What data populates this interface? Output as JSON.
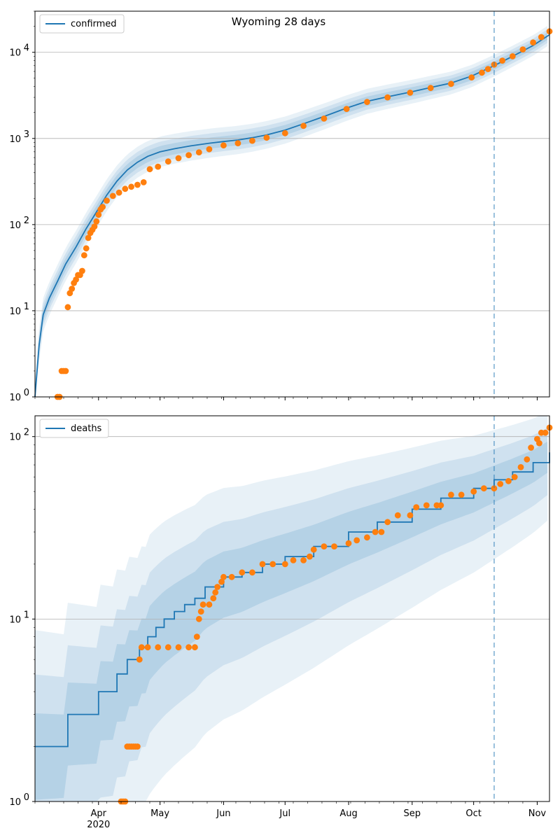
{
  "chart_data": [
    {
      "type": "line",
      "title": "Wyoming 28 days",
      "xlabel": "",
      "ylabel": "",
      "yscale": "log",
      "ylim": [
        1,
        30000
      ],
      "y_ticks": [
        {
          "label_base": "10",
          "label_exp": "0",
          "value": 1
        },
        {
          "label_base": "10",
          "label_exp": "1",
          "value": 10
        },
        {
          "label_base": "10",
          "label_exp": "2",
          "value": 100
        },
        {
          "label_base": "10",
          "label_exp": "3",
          "value": 1000
        },
        {
          "label_base": "10",
          "label_exp": "4",
          "value": 10000
        }
      ],
      "grid": "horizontal",
      "legend": {
        "placement": "top-left",
        "entries": [
          "confirmed"
        ]
      },
      "forecast_start": "2020-10-11",
      "series": [
        {
          "name": "confirmed",
          "kind": "model-median-line",
          "color": "#1f77b4",
          "x": [
            "2020-03-01",
            "2020-03-03",
            "2020-03-05",
            "2020-03-08",
            "2020-03-12",
            "2020-03-16",
            "2020-03-21",
            "2020-03-26",
            "2020-03-31",
            "2020-04-05",
            "2020-04-10",
            "2020-04-15",
            "2020-04-20",
            "2020-04-25",
            "2020-05-01",
            "2020-05-08",
            "2020-05-16",
            "2020-05-25",
            "2020-06-01",
            "2020-06-08",
            "2020-06-15",
            "2020-06-22",
            "2020-07-01",
            "2020-07-10",
            "2020-07-20",
            "2020-07-31",
            "2020-08-10",
            "2020-08-20",
            "2020-08-31",
            "2020-09-10",
            "2020-09-20",
            "2020-09-30",
            "2020-10-11",
            "2020-10-20",
            "2020-10-30",
            "2020-11-07"
          ],
          "y": [
            1,
            4,
            9,
            14,
            22,
            35,
            55,
            90,
            140,
            220,
            320,
            430,
            530,
            620,
            700,
            760,
            820,
            880,
            920,
            960,
            1020,
            1100,
            1250,
            1480,
            1800,
            2250,
            2700,
            3050,
            3450,
            3900,
            4400,
            5300,
            7000,
            9000,
            12000,
            16000
          ]
        },
        {
          "name": "",
          "kind": "observed",
          "color": "#ff7f0e",
          "x": [
            "2020-03-12",
            "2020-03-13",
            "2020-03-14",
            "2020-03-15",
            "2020-03-16",
            "2020-03-17",
            "2020-03-18",
            "2020-03-19",
            "2020-03-20",
            "2020-03-21",
            "2020-03-22",
            "2020-03-23",
            "2020-03-24",
            "2020-03-25",
            "2020-03-26",
            "2020-03-27",
            "2020-03-28",
            "2020-03-29",
            "2020-03-30",
            "2020-03-31",
            "2020-04-01",
            "2020-04-02",
            "2020-04-03",
            "2020-04-05",
            "2020-04-08",
            "2020-04-11",
            "2020-04-14",
            "2020-04-17",
            "2020-04-20",
            "2020-04-23",
            "2020-04-26",
            "2020-04-30",
            "2020-05-05",
            "2020-05-10",
            "2020-05-15",
            "2020-05-20",
            "2020-05-25",
            "2020-06-01",
            "2020-06-08",
            "2020-06-15",
            "2020-06-22",
            "2020-07-01",
            "2020-07-10",
            "2020-07-20",
            "2020-07-31",
            "2020-08-10",
            "2020-08-20",
            "2020-08-31",
            "2020-09-10",
            "2020-09-20",
            "2020-09-30",
            "2020-10-05",
            "2020-10-08",
            "2020-10-11",
            "2020-10-15",
            "2020-10-20",
            "2020-10-25",
            "2020-10-30",
            "2020-11-03",
            "2020-11-07"
          ],
          "y": [
            1,
            1,
            2,
            2,
            2,
            11,
            16,
            18,
            21,
            23,
            26,
            26,
            29,
            44,
            53,
            70,
            80,
            87,
            95,
            109,
            130,
            150,
            160,
            190,
            215,
            235,
            260,
            275,
            290,
            310,
            440,
            470,
            540,
            590,
            640,
            690,
            750,
            830,
            880,
            940,
            1020,
            1150,
            1400,
            1700,
            2200,
            2650,
            3000,
            3400,
            3850,
            4300,
            5100,
            5800,
            6400,
            7200,
            8000,
            9000,
            10800,
            13000,
            15000,
            17500
          ]
        }
      ]
    },
    {
      "type": "line",
      "title": "",
      "xlabel": "",
      "ylabel": "",
      "yscale": "log",
      "ylim": [
        1,
        130
      ],
      "y_ticks": [
        {
          "label_base": "10",
          "label_exp": "0",
          "value": 1
        },
        {
          "label_base": "10",
          "label_exp": "1",
          "value": 10
        },
        {
          "label_base": "10",
          "label_exp": "2",
          "value": 100
        }
      ],
      "grid": "horizontal",
      "legend": {
        "placement": "top-left",
        "entries": [
          "deaths"
        ]
      },
      "forecast_start": "2020-10-11",
      "x_ticks": [
        {
          "label": "Apr",
          "date": "2020-04-01"
        },
        {
          "label": "May",
          "date": "2020-05-01"
        },
        {
          "label": "Jun",
          "date": "2020-06-01"
        },
        {
          "label": "Jul",
          "date": "2020-07-01"
        },
        {
          "label": "Aug",
          "date": "2020-08-01"
        },
        {
          "label": "Sep",
          "date": "2020-09-01"
        },
        {
          "label": "Oct",
          "date": "2020-10-01"
        },
        {
          "label": "Nov",
          "date": "2020-11-01"
        }
      ],
      "x_year_label": "2020",
      "x_range": [
        "2020-03-01",
        "2020-11-07"
      ],
      "series": [
        {
          "name": "deaths",
          "kind": "model-median-line",
          "color": "#1f77b4",
          "x": [
            "2020-03-01",
            "2020-03-16",
            "2020-03-17",
            "2020-03-31",
            "2020-04-01",
            "2020-04-09",
            "2020-04-10",
            "2020-04-14",
            "2020-04-15",
            "2020-04-20",
            "2020-04-21",
            "2020-04-24",
            "2020-04-25",
            "2020-04-29",
            "2020-05-03",
            "2020-05-08",
            "2020-05-13",
            "2020-05-18",
            "2020-05-23",
            "2020-06-01",
            "2020-06-10",
            "2020-06-20",
            "2020-07-01",
            "2020-07-15",
            "2020-08-01",
            "2020-08-15",
            "2020-09-01",
            "2020-09-15",
            "2020-10-01",
            "2020-10-11",
            "2020-10-20",
            "2020-10-30",
            "2020-11-07"
          ],
          "y": [
            2,
            2,
            3,
            3,
            4,
            4,
            5,
            5,
            6,
            6,
            7,
            7,
            8,
            9,
            10,
            11,
            12,
            13,
            15,
            17,
            18,
            20,
            22,
            25,
            30,
            34,
            40,
            46,
            52,
            58,
            64,
            72,
            82
          ]
        },
        {
          "name": "",
          "kind": "observed",
          "color": "#ff7f0e",
          "x": [
            "2020-04-12",
            "2020-04-13",
            "2020-04-14",
            "2020-04-15",
            "2020-04-16",
            "2020-04-17",
            "2020-04-18",
            "2020-04-19",
            "2020-04-20",
            "2020-04-21",
            "2020-04-22",
            "2020-04-25",
            "2020-04-30",
            "2020-05-05",
            "2020-05-10",
            "2020-05-15",
            "2020-05-18",
            "2020-05-19",
            "2020-05-20",
            "2020-05-21",
            "2020-05-22",
            "2020-05-25",
            "2020-05-27",
            "2020-05-28",
            "2020-05-29",
            "2020-05-31",
            "2020-06-01",
            "2020-06-05",
            "2020-06-10",
            "2020-06-15",
            "2020-06-20",
            "2020-06-25",
            "2020-07-01",
            "2020-07-05",
            "2020-07-10",
            "2020-07-13",
            "2020-07-15",
            "2020-07-20",
            "2020-07-25",
            "2020-08-01",
            "2020-08-05",
            "2020-08-10",
            "2020-08-14",
            "2020-08-17",
            "2020-08-20",
            "2020-08-25",
            "2020-08-31",
            "2020-09-03",
            "2020-09-08",
            "2020-09-13",
            "2020-09-15",
            "2020-09-20",
            "2020-09-25",
            "2020-10-01",
            "2020-10-06",
            "2020-10-11",
            "2020-10-14",
            "2020-10-18",
            "2020-10-21",
            "2020-10-24",
            "2020-10-27",
            "2020-10-29",
            "2020-11-01",
            "2020-11-02",
            "2020-11-03",
            "2020-11-05",
            "2020-11-07"
          ],
          "y": [
            1,
            1,
            1,
            2,
            2,
            2,
            2,
            2,
            2,
            6,
            7,
            7,
            7,
            7,
            7,
            7,
            7,
            8,
            10,
            11,
            12,
            12,
            13,
            14,
            15,
            16,
            17,
            17,
            18,
            18,
            20,
            20,
            20,
            21,
            21,
            22,
            24,
            25,
            25,
            26,
            27,
            28,
            30,
            30,
            34,
            37,
            37,
            41,
            42,
            42,
            42,
            48,
            48,
            50,
            52,
            52,
            55,
            57,
            60,
            68,
            75,
            87,
            97,
            92,
            105,
            105,
            112
          ]
        }
      ]
    }
  ]
}
